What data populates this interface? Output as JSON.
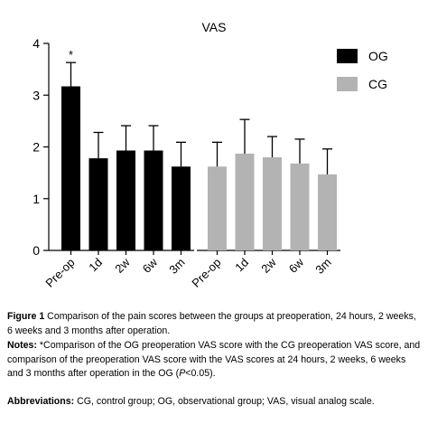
{
  "chart_data": {
    "type": "bar",
    "title": "VAS",
    "xlabel": "",
    "ylabel": "",
    "ylim": [
      0,
      4
    ],
    "yticks": [
      "0",
      "1",
      "2",
      "3",
      "4"
    ],
    "grid": false,
    "legend_position": "top-right",
    "groups": [
      {
        "name": "OG",
        "color": "#000000",
        "categories": [
          "Pre-op",
          "1d",
          "2w",
          "6w",
          "3m"
        ],
        "values": [
          3.17,
          1.78,
          1.93,
          1.93,
          1.62
        ],
        "error_upper": [
          3.63,
          2.28,
          2.41,
          2.41,
          2.09
        ]
      },
      {
        "name": "CG",
        "color": "#b3b3b3",
        "categories": [
          "Pre-op",
          "1d",
          "2w",
          "6w",
          "3m"
        ],
        "values": [
          1.62,
          1.87,
          1.8,
          1.68,
          1.47
        ],
        "error_upper": [
          2.09,
          2.53,
          2.2,
          2.15,
          1.96
        ]
      }
    ],
    "annotations": [
      {
        "group": 0,
        "index": 0,
        "text": "*"
      }
    ]
  },
  "caption": {
    "figure_label": "Figure 1",
    "figure_text": "Comparison of the pain scores between the groups at preoperation, 24 hours, 2 weeks, 6 weeks and 3 months after operation.",
    "notes_label": "Notes:",
    "notes_text_1": "*Comparison of the OG preoperation VAS score with the CG preoperation VAS score, and comparison of the preoperation VAS score with the VAS scores at 24 hours, 2 weeks, 6 weeks and 3 months after operation in the OG (",
    "notes_p": "P",
    "notes_text_2": "<0.05).",
    "abbr_label": "Abbreviations:",
    "abbr_text": "CG, control group; OG, observational group; VAS, visual analog scale."
  }
}
